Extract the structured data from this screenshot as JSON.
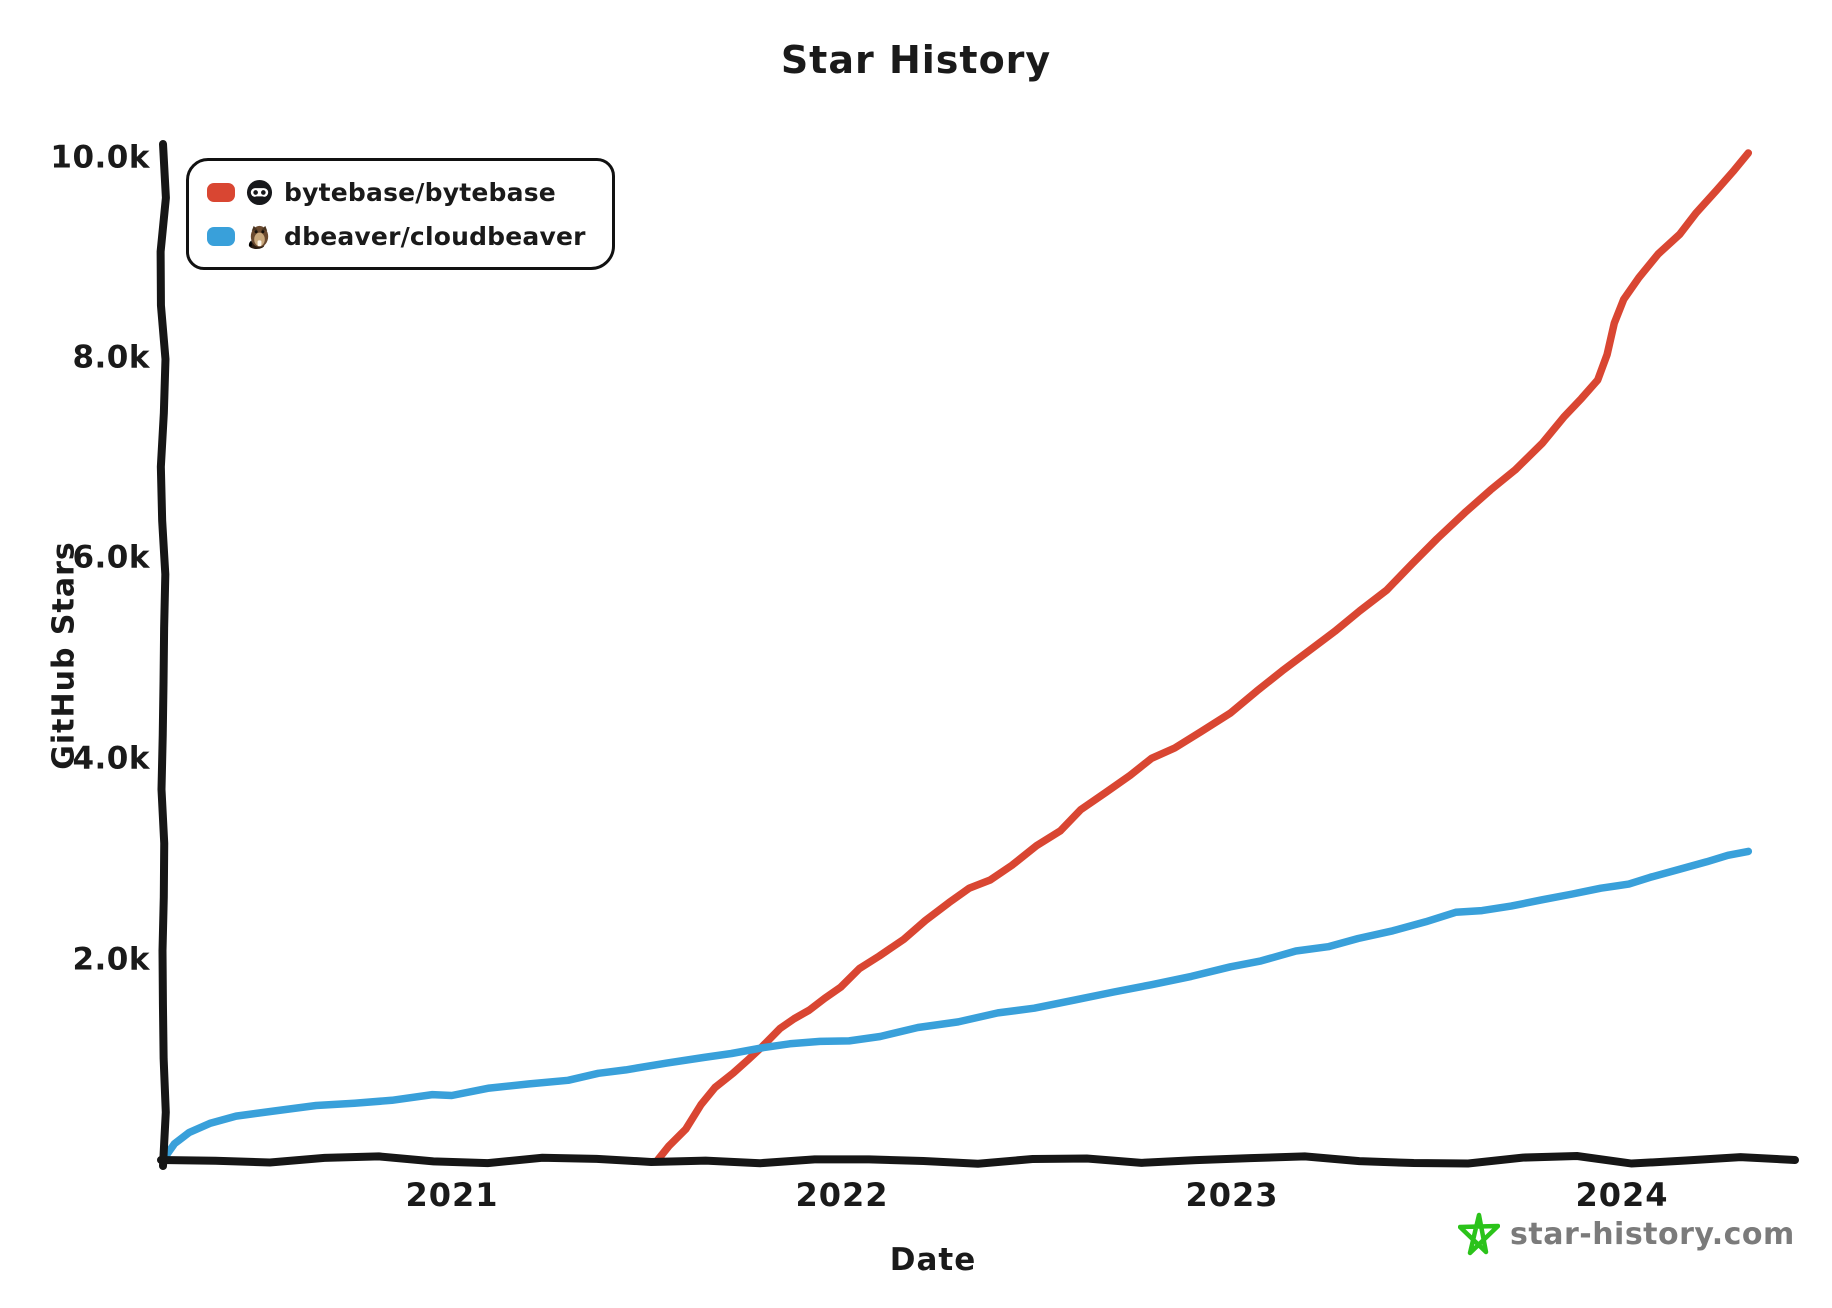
{
  "title": "Star History",
  "axis": {
    "color": "#161616"
  },
  "legend": [
    {
      "label": "bytebase/bytebase",
      "color": "#d94632",
      "avatar_icon": "bytebase-logo-icon"
    },
    {
      "label": "dbeaver/cloudbeaver",
      "color": "#39a0da",
      "avatar_icon": "beaver-logo-icon"
    }
  ],
  "watermark": {
    "text": "star-history.com",
    "star_icon": "green-star-icon",
    "star_color": "#2bc31a",
    "text_color": "#7b7b7b"
  },
  "chart_data": {
    "type": "line",
    "title": "Star History",
    "xlabel": "Date",
    "ylabel": "GitHub Stars",
    "grid": false,
    "legend_position": "top-left",
    "xlim": [
      2020.26,
      2024.45
    ],
    "ylim": [
      0,
      10100
    ],
    "x_ticks": [
      2021,
      2022,
      2023,
      2024
    ],
    "x_tick_labels": [
      "2021",
      "2022",
      "2023",
      "2024"
    ],
    "y_ticks": [
      2000,
      4000,
      6000,
      8000,
      10000
    ],
    "y_tick_labels": [
      "2.0k",
      "4.0k",
      "6.0k",
      "8.0k",
      "10.0k"
    ],
    "series": [
      {
        "name": "bytebase/bytebase",
        "color": "#d94632",
        "points": [
          [
            2021.53,
            0
          ],
          [
            2021.56,
            130
          ],
          [
            2021.6,
            320
          ],
          [
            2021.64,
            540
          ],
          [
            2021.68,
            730
          ],
          [
            2021.72,
            870
          ],
          [
            2021.76,
            1000
          ],
          [
            2021.8,
            1140
          ],
          [
            2021.84,
            1300
          ],
          [
            2021.88,
            1420
          ],
          [
            2021.92,
            1500
          ],
          [
            2021.96,
            1610
          ],
          [
            2022.0,
            1740
          ],
          [
            2022.05,
            1900
          ],
          [
            2022.1,
            2040
          ],
          [
            2022.16,
            2210
          ],
          [
            2022.22,
            2380
          ],
          [
            2022.28,
            2570
          ],
          [
            2022.33,
            2700
          ],
          [
            2022.38,
            2800
          ],
          [
            2022.44,
            2950
          ],
          [
            2022.5,
            3130
          ],
          [
            2022.56,
            3290
          ],
          [
            2022.62,
            3480
          ],
          [
            2022.68,
            3680
          ],
          [
            2022.74,
            3850
          ],
          [
            2022.8,
            4000
          ],
          [
            2022.86,
            4120
          ],
          [
            2022.92,
            4270
          ],
          [
            2023.0,
            4470
          ],
          [
            2023.07,
            4690
          ],
          [
            2023.13,
            4880
          ],
          [
            2023.2,
            5080
          ],
          [
            2023.27,
            5270
          ],
          [
            2023.33,
            5480
          ],
          [
            2023.4,
            5700
          ],
          [
            2023.47,
            5950
          ],
          [
            2023.53,
            6200
          ],
          [
            2023.6,
            6450
          ],
          [
            2023.67,
            6700
          ],
          [
            2023.73,
            6900
          ],
          [
            2023.8,
            7150
          ],
          [
            2023.86,
            7420
          ],
          [
            2023.9,
            7600
          ],
          [
            2023.94,
            7800
          ],
          [
            2023.97,
            8050
          ],
          [
            2023.99,
            8350
          ],
          [
            2024.01,
            8600
          ],
          [
            2024.05,
            8800
          ],
          [
            2024.1,
            9050
          ],
          [
            2024.15,
            9250
          ],
          [
            2024.2,
            9450
          ],
          [
            2024.25,
            9680
          ],
          [
            2024.29,
            9850
          ],
          [
            2024.33,
            10050
          ]
        ]
      },
      {
        "name": "dbeaver/cloudbeaver",
        "color": "#39a0da",
        "points": [
          [
            2020.26,
            0
          ],
          [
            2020.29,
            150
          ],
          [
            2020.33,
            290
          ],
          [
            2020.38,
            370
          ],
          [
            2020.45,
            430
          ],
          [
            2020.55,
            490
          ],
          [
            2020.65,
            535
          ],
          [
            2020.75,
            570
          ],
          [
            2020.85,
            610
          ],
          [
            2020.95,
            640
          ],
          [
            2021.0,
            655
          ],
          [
            2021.1,
            710
          ],
          [
            2021.2,
            760
          ],
          [
            2021.3,
            800
          ],
          [
            2021.38,
            860
          ],
          [
            2021.45,
            905
          ],
          [
            2021.55,
            960
          ],
          [
            2021.65,
            1030
          ],
          [
            2021.72,
            1070
          ],
          [
            2021.8,
            1120
          ],
          [
            2021.87,
            1160
          ],
          [
            2021.95,
            1175
          ],
          [
            2022.02,
            1195
          ],
          [
            2022.1,
            1240
          ],
          [
            2022.2,
            1320
          ],
          [
            2022.3,
            1390
          ],
          [
            2022.4,
            1455
          ],
          [
            2022.5,
            1530
          ],
          [
            2022.6,
            1600
          ],
          [
            2022.7,
            1670
          ],
          [
            2022.8,
            1755
          ],
          [
            2022.9,
            1830
          ],
          [
            2023.0,
            1930
          ],
          [
            2023.08,
            2000
          ],
          [
            2023.17,
            2070
          ],
          [
            2023.25,
            2130
          ],
          [
            2023.33,
            2200
          ],
          [
            2023.42,
            2300
          ],
          [
            2023.5,
            2380
          ],
          [
            2023.58,
            2460
          ],
          [
            2023.65,
            2500
          ],
          [
            2023.72,
            2530
          ],
          [
            2023.8,
            2600
          ],
          [
            2023.88,
            2660
          ],
          [
            2023.95,
            2700
          ],
          [
            2024.02,
            2760
          ],
          [
            2024.08,
            2820
          ],
          [
            2024.15,
            2900
          ],
          [
            2024.22,
            2980
          ],
          [
            2024.28,
            3040
          ],
          [
            2024.33,
            3080
          ]
        ]
      }
    ]
  }
}
